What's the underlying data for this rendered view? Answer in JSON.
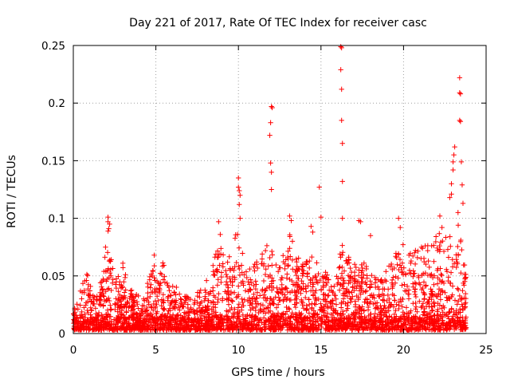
{
  "chart_data": {
    "type": "scatter",
    "title": "Day 221 of 2017, Rate Of TEC Index for receiver casc",
    "xlabel": "GPS time / hours",
    "ylabel": "ROTI / TECUs",
    "xlim": [
      0,
      25
    ],
    "ylim": [
      0,
      0.25
    ],
    "x_ticks": [
      0,
      5,
      10,
      15,
      20,
      25
    ],
    "y_ticks": [
      0,
      0.05,
      0.1,
      0.15,
      0.2,
      0.25
    ],
    "x_tick_labels": [
      "0",
      "5",
      "10",
      "15",
      "20",
      "25"
    ],
    "y_tick_labels": [
      "0",
      "0.05",
      "0.1",
      "0.15",
      "0.2",
      "0.25"
    ],
    "grid": true,
    "marker": "+",
    "color": "#ff0000",
    "x_data_range": [
      0,
      23.8
    ],
    "envelope": [
      [
        0.0,
        0.022
      ],
      [
        0.4,
        0.04
      ],
      [
        0.8,
        0.055
      ],
      [
        1.2,
        0.035
      ],
      [
        1.6,
        0.04
      ],
      [
        2.1,
        0.09
      ],
      [
        2.5,
        0.045
      ],
      [
        3.1,
        0.06
      ],
      [
        3.6,
        0.035
      ],
      [
        4.2,
        0.032
      ],
      [
        4.9,
        0.06
      ],
      [
        5.5,
        0.062
      ],
      [
        6.0,
        0.045
      ],
      [
        6.6,
        0.035
      ],
      [
        7.1,
        0.03
      ],
      [
        7.7,
        0.04
      ],
      [
        8.3,
        0.05
      ],
      [
        8.8,
        0.08
      ],
      [
        9.3,
        0.06
      ],
      [
        9.9,
        0.09
      ],
      [
        10.5,
        0.06
      ],
      [
        11.1,
        0.065
      ],
      [
        11.9,
        0.08
      ],
      [
        12.5,
        0.06
      ],
      [
        13.1,
        0.09
      ],
      [
        13.8,
        0.06
      ],
      [
        14.5,
        0.07
      ],
      [
        15.2,
        0.055
      ],
      [
        15.8,
        0.045
      ],
      [
        16.3,
        0.08
      ],
      [
        16.9,
        0.06
      ],
      [
        17.5,
        0.065
      ],
      [
        18.1,
        0.05
      ],
      [
        18.6,
        0.05
      ],
      [
        19.2,
        0.06
      ],
      [
        19.9,
        0.08
      ],
      [
        20.4,
        0.07
      ],
      [
        21.0,
        0.075
      ],
      [
        21.6,
        0.08
      ],
      [
        22.2,
        0.09
      ],
      [
        22.8,
        0.1
      ],
      [
        23.4,
        0.095
      ],
      [
        23.8,
        0.05
      ]
    ],
    "spikes": [
      [
        2.1,
        0.101
      ],
      [
        2.1,
        0.097
      ],
      [
        2.2,
        0.095
      ],
      [
        2.15,
        0.091
      ],
      [
        3.0,
        0.061
      ],
      [
        4.9,
        0.068
      ],
      [
        8.8,
        0.097
      ],
      [
        8.9,
        0.086
      ],
      [
        10.0,
        0.135
      ],
      [
        10.0,
        0.127
      ],
      [
        10.05,
        0.124
      ],
      [
        10.1,
        0.12
      ],
      [
        10.05,
        0.112
      ],
      [
        10.1,
        0.1
      ],
      [
        9.95,
        0.086
      ],
      [
        12.0,
        0.197
      ],
      [
        12.05,
        0.196
      ],
      [
        11.95,
        0.183
      ],
      [
        11.9,
        0.172
      ],
      [
        11.95,
        0.148
      ],
      [
        12.0,
        0.14
      ],
      [
        12.0,
        0.125
      ],
      [
        13.1,
        0.102
      ],
      [
        13.2,
        0.098
      ],
      [
        14.4,
        0.093
      ],
      [
        14.5,
        0.088
      ],
      [
        14.9,
        0.127
      ],
      [
        15.0,
        0.101
      ],
      [
        16.2,
        0.249
      ],
      [
        16.25,
        0.248
      ],
      [
        16.2,
        0.229
      ],
      [
        16.25,
        0.212
      ],
      [
        16.25,
        0.185
      ],
      [
        16.3,
        0.165
      ],
      [
        16.3,
        0.132
      ],
      [
        16.3,
        0.1
      ],
      [
        17.3,
        0.098
      ],
      [
        17.4,
        0.097
      ],
      [
        18.0,
        0.085
      ],
      [
        19.7,
        0.1
      ],
      [
        19.8,
        0.092
      ],
      [
        22.2,
        0.102
      ],
      [
        22.8,
        0.118
      ],
      [
        22.9,
        0.121
      ],
      [
        22.9,
        0.13
      ],
      [
        23.0,
        0.142
      ],
      [
        23.0,
        0.149
      ],
      [
        23.05,
        0.155
      ],
      [
        23.1,
        0.162
      ],
      [
        23.4,
        0.222
      ],
      [
        23.4,
        0.209
      ],
      [
        23.45,
        0.208
      ],
      [
        23.4,
        0.185
      ],
      [
        23.45,
        0.184
      ],
      [
        23.5,
        0.149
      ],
      [
        23.55,
        0.129
      ],
      [
        23.6,
        0.113
      ],
      [
        23.3,
        0.105
      ]
    ]
  }
}
